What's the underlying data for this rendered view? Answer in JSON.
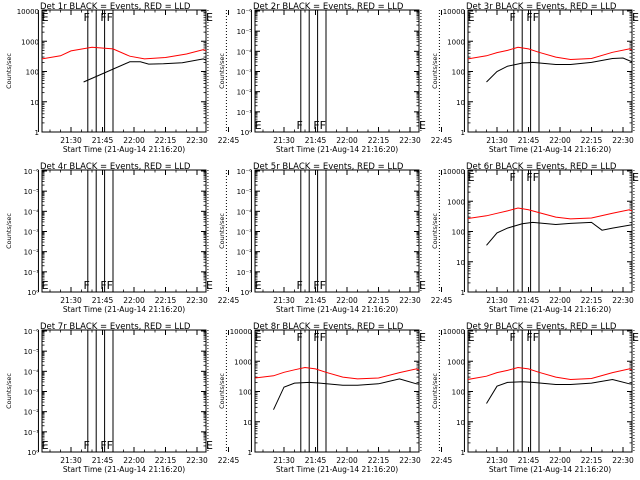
{
  "chart_data": [
    {
      "type": "line",
      "title": "Det 1r BLACK = Events, RED = LLD",
      "xlabel": "Start Time (21-Aug-14 21:16:20)",
      "ylabel": "Counts/sec",
      "x_tick_labels": [
        "21:30",
        "21:45",
        "22:00",
        "22:15",
        "22:30",
        "22:45"
      ],
      "y_tick_labels": [
        "1",
        "10",
        "100",
        "1000",
        "10000"
      ],
      "yscale": "log",
      "ylim": [
        1,
        10000
      ],
      "has_data": true,
      "series": [
        {
          "color": "#000000",
          "x_min": [
            6,
            28,
            33,
            37,
            44,
            53,
            63,
            72,
            80,
            86,
            87
          ],
          "y": [
            45,
            210,
            210,
            175,
            180,
            195,
            260,
            140,
            180,
            165,
            145
          ]
        },
        {
          "color": "#ff0000",
          "x_min": [
            -14,
            -5,
            0,
            10,
            20,
            28,
            35,
            45,
            55,
            63,
            72,
            80,
            90
          ],
          "y": [
            260,
            330,
            480,
            630,
            560,
            320,
            260,
            290,
            380,
            530,
            330,
            270,
            270
          ]
        }
      ],
      "flag_letters": [
        {
          "text": "E",
          "x_min": -14.5,
          "pos": "top"
        },
        {
          "text": "F",
          "x_min": 5.5,
          "pos": "top"
        },
        {
          "text": "F",
          "x_min": 13.5,
          "pos": "top"
        },
        {
          "text": "F",
          "x_min": 16.5,
          "pos": "top"
        },
        {
          "text": "E",
          "x_min": 63.8,
          "pos": "top"
        }
      ]
    },
    {
      "type": "line",
      "title": "Det 2r BLACK = Events, RED = LLD",
      "xlabel": "Start Time (21-Aug-14 21:16:20)",
      "ylabel": "Counts/sec",
      "x_tick_labels": [
        "21:30",
        "21:45",
        "22:00",
        "22:15",
        "22:30",
        "22:45"
      ],
      "y_tick_labels": [
        "10⁰",
        "10⁻¹",
        "10⁻²",
        "10⁻³",
        "10⁻⁴",
        "10⁻⁵",
        "10⁻⁶"
      ],
      "yscale": "log",
      "has_data": false,
      "series": [],
      "flag_letters": [
        {
          "text": "E",
          "x_min": -14.5,
          "pos": "bottom"
        },
        {
          "text": "F",
          "x_min": 5.5,
          "pos": "bottom"
        },
        {
          "text": "F",
          "x_min": 13.5,
          "pos": "bottom"
        },
        {
          "text": "F",
          "x_min": 16.5,
          "pos": "bottom"
        },
        {
          "text": "E",
          "x_min": 63.8,
          "pos": "bottom"
        }
      ]
    },
    {
      "type": "line",
      "title": "Det 3r BLACK = Events, RED = LLD",
      "xlabel": "Start Time (21-Aug-14 21:16:20)",
      "ylabel": "Counts/sec",
      "x_tick_labels": [
        "21:30",
        "21:45",
        "22:00",
        "22:15",
        "22:30",
        "22:45"
      ],
      "y_tick_labels": [
        "1",
        "10",
        "100",
        "1000",
        "10000"
      ],
      "yscale": "log",
      "ylim": [
        1,
        10000
      ],
      "has_data": true,
      "series": [
        {
          "color": "#000000",
          "x_min": [
            -5,
            0,
            5,
            12,
            17,
            28,
            35,
            45,
            55,
            60,
            65,
            72,
            80,
            86,
            87
          ],
          "y": [
            45,
            100,
            150,
            190,
            200,
            170,
            170,
            200,
            270,
            280,
            200,
            175,
            180,
            165,
            145
          ]
        },
        {
          "color": "#ff0000",
          "x_min": [
            -14,
            -5,
            0,
            5,
            10,
            15,
            20,
            28,
            35,
            45,
            55,
            63,
            72,
            80,
            90
          ],
          "y": [
            260,
            330,
            420,
            500,
            630,
            560,
            430,
            300,
            250,
            270,
            430,
            560,
            330,
            270,
            260
          ]
        }
      ],
      "flag_letters": [
        {
          "text": "E",
          "x_min": -14.5,
          "pos": "top"
        },
        {
          "text": "F",
          "x_min": 5.5,
          "pos": "top"
        },
        {
          "text": "F",
          "x_min": 13.5,
          "pos": "top"
        },
        {
          "text": "F",
          "x_min": 16.5,
          "pos": "top"
        },
        {
          "text": "E",
          "x_min": 63.8,
          "pos": "top"
        }
      ]
    },
    {
      "type": "line",
      "title": "Det 4r BLACK = Events, RED = LLD",
      "xlabel": "Start Time (21-Aug-14 21:16:20)",
      "ylabel": "Counts/sec",
      "x_tick_labels": [
        "21:30",
        "21:45",
        "22:00",
        "22:15",
        "22:30",
        "22:45"
      ],
      "y_tick_labels": [
        "10⁰",
        "10⁻¹",
        "10⁻²",
        "10⁻³",
        "10⁻⁴",
        "10⁻⁵",
        "10⁻⁶"
      ],
      "yscale": "log",
      "has_data": false,
      "series": [],
      "flag_letters": [
        {
          "text": "E",
          "x_min": -14.5,
          "pos": "bottom"
        },
        {
          "text": "F",
          "x_min": 5.5,
          "pos": "bottom"
        },
        {
          "text": "F",
          "x_min": 13.5,
          "pos": "bottom"
        },
        {
          "text": "F",
          "x_min": 16.5,
          "pos": "bottom"
        },
        {
          "text": "E",
          "x_min": 63.8,
          "pos": "bottom"
        }
      ]
    },
    {
      "type": "line",
      "title": "Det 5r BLACK = Events, RED = LLD",
      "xlabel": "Start Time (21-Aug-14 21:16:20)",
      "ylabel": "Counts/sec",
      "x_tick_labels": [
        "21:30",
        "21:45",
        "22:00",
        "22:15",
        "22:30",
        "22:45"
      ],
      "y_tick_labels": [
        "10⁰",
        "10⁻¹",
        "10⁻²",
        "10⁻³",
        "10⁻⁴",
        "10⁻⁵",
        "10⁻⁶"
      ],
      "yscale": "log",
      "has_data": false,
      "series": [],
      "flag_letters": [
        {
          "text": "E",
          "x_min": -14.5,
          "pos": "bottom"
        },
        {
          "text": "F",
          "x_min": 5.5,
          "pos": "bottom"
        },
        {
          "text": "F",
          "x_min": 13.5,
          "pos": "bottom"
        },
        {
          "text": "F",
          "x_min": 16.5,
          "pos": "bottom"
        },
        {
          "text": "E",
          "x_min": 63.8,
          "pos": "bottom"
        }
      ]
    },
    {
      "type": "line",
      "title": "Det 6r BLACK = Events, RED = LLD",
      "xlabel": "Start Time (21-Aug-14 21:16:20)",
      "ylabel": "Counts/sec",
      "x_tick_labels": [
        "21:30",
        "21:45",
        "22:00",
        "22:15",
        "22:30",
        "22:45"
      ],
      "y_tick_labels": [
        "1",
        "10",
        "100",
        "1000",
        "10000"
      ],
      "yscale": "log",
      "ylim": [
        1,
        10000
      ],
      "has_data": true,
      "series": [
        {
          "color": "#000000",
          "x_min": [
            -5,
            0,
            5,
            12,
            17,
            28,
            35,
            45,
            50,
            55,
            65,
            72,
            80,
            86,
            87
          ],
          "y": [
            35,
            90,
            130,
            180,
            200,
            170,
            185,
            200,
            110,
            130,
            170,
            185,
            175,
            160,
            140
          ]
        },
        {
          "color": "#ff0000",
          "x_min": [
            -14,
            -5,
            0,
            5,
            10,
            15,
            20,
            28,
            35,
            45,
            55,
            63,
            72,
            80,
            90
          ],
          "y": [
            270,
            330,
            400,
            480,
            600,
            520,
            420,
            300,
            260,
            280,
            400,
            520,
            320,
            270,
            270
          ]
        }
      ],
      "flag_letters": [
        {
          "text": "E",
          "x_min": -14.5,
          "pos": "top"
        },
        {
          "text": "F",
          "x_min": 5.5,
          "pos": "top"
        },
        {
          "text": "F",
          "x_min": 13.5,
          "pos": "top"
        },
        {
          "text": "F",
          "x_min": 16.5,
          "pos": "top"
        },
        {
          "text": "E",
          "x_min": 63.8,
          "pos": "top"
        }
      ]
    },
    {
      "type": "line",
      "title": "Det 7r BLACK = Events, RED = LLD",
      "xlabel": "Start Time (21-Aug-14 21:16:20)",
      "ylabel": "Counts/sec",
      "x_tick_labels": [
        "21:30",
        "21:45",
        "22:00",
        "22:15",
        "22:30",
        "22:45"
      ],
      "y_tick_labels": [
        "10⁰",
        "10⁻¹",
        "10⁻²",
        "10⁻³",
        "10⁻⁴",
        "10⁻⁵",
        "10⁻⁶"
      ],
      "yscale": "log",
      "has_data": false,
      "series": [],
      "flag_letters": [
        {
          "text": "E",
          "x_min": -14.5,
          "pos": "bottom"
        },
        {
          "text": "F",
          "x_min": 5.5,
          "pos": "bottom"
        },
        {
          "text": "F",
          "x_min": 13.5,
          "pos": "bottom"
        },
        {
          "text": "F",
          "x_min": 16.5,
          "pos": "bottom"
        },
        {
          "text": "E",
          "x_min": 63.8,
          "pos": "bottom"
        }
      ]
    },
    {
      "type": "line",
      "title": "Det 8r BLACK = Events, RED = LLD",
      "xlabel": "Start Time (21-Aug-14 21:16:20)",
      "ylabel": "Counts/sec",
      "x_tick_labels": [
        "21:30",
        "21:45",
        "22:00",
        "22:15",
        "22:30",
        "22:45"
      ],
      "y_tick_labels": [
        "1",
        "10",
        "100",
        "1000",
        "10000"
      ],
      "yscale": "log",
      "ylim": [
        1,
        10000
      ],
      "has_data": true,
      "series": [
        {
          "color": "#000000",
          "x_min": [
            -5,
            0,
            5,
            12,
            17,
            28,
            35,
            45,
            55,
            63,
            72,
            80,
            86,
            87
          ],
          "y": [
            25,
            140,
            190,
            200,
            190,
            160,
            160,
            180,
            260,
            180,
            150,
            160,
            150,
            140
          ]
        },
        {
          "color": "#ff0000",
          "x_min": [
            -14,
            -5,
            0,
            5,
            10,
            15,
            20,
            28,
            35,
            45,
            55,
            63,
            72,
            80,
            90
          ],
          "y": [
            280,
            330,
            430,
            520,
            620,
            560,
            430,
            300,
            260,
            280,
            420,
            560,
            330,
            280,
            280
          ]
        }
      ],
      "flag_letters": [
        {
          "text": "E",
          "x_min": -14.5,
          "pos": "top"
        },
        {
          "text": "F",
          "x_min": 5.5,
          "pos": "top"
        },
        {
          "text": "F",
          "x_min": 13.5,
          "pos": "top"
        },
        {
          "text": "F",
          "x_min": 16.5,
          "pos": "top"
        },
        {
          "text": "E",
          "x_min": 63.8,
          "pos": "top"
        }
      ]
    },
    {
      "type": "line",
      "title": "Det 9r BLACK = Events, RED = LLD",
      "xlabel": "Start Time (21-Aug-14 21:16:20)",
      "ylabel": "Counts/sec",
      "x_tick_labels": [
        "21:30",
        "21:45",
        "22:00",
        "22:15",
        "22:30",
        "22:45"
      ],
      "y_tick_labels": [
        "1",
        "10",
        "100",
        "1000",
        "10000"
      ],
      "yscale": "log",
      "ylim": [
        1,
        10000
      ],
      "has_data": true,
      "series": [
        {
          "color": "#000000",
          "x_min": [
            -5,
            0,
            5,
            12,
            17,
            28,
            35,
            45,
            55,
            63,
            72,
            80,
            86,
            87
          ],
          "y": [
            40,
            150,
            200,
            210,
            200,
            170,
            170,
            190,
            250,
            180,
            150,
            165,
            150,
            140
          ]
        },
        {
          "color": "#ff0000",
          "x_min": [
            -14,
            -5,
            0,
            5,
            10,
            15,
            20,
            28,
            35,
            45,
            55,
            63,
            72,
            80,
            90
          ],
          "y": [
            250,
            320,
            420,
            500,
            620,
            560,
            430,
            300,
            250,
            270,
            420,
            560,
            330,
            270,
            270
          ]
        }
      ],
      "flag_letters": [
        {
          "text": "E",
          "x_min": -14.5,
          "pos": "top"
        },
        {
          "text": "F",
          "x_min": 5.5,
          "pos": "top"
        },
        {
          "text": "F",
          "x_min": 13.5,
          "pos": "top"
        },
        {
          "text": "F",
          "x_min": 16.5,
          "pos": "top"
        },
        {
          "text": "E",
          "x_min": 63.8,
          "pos": "top"
        }
      ]
    }
  ]
}
